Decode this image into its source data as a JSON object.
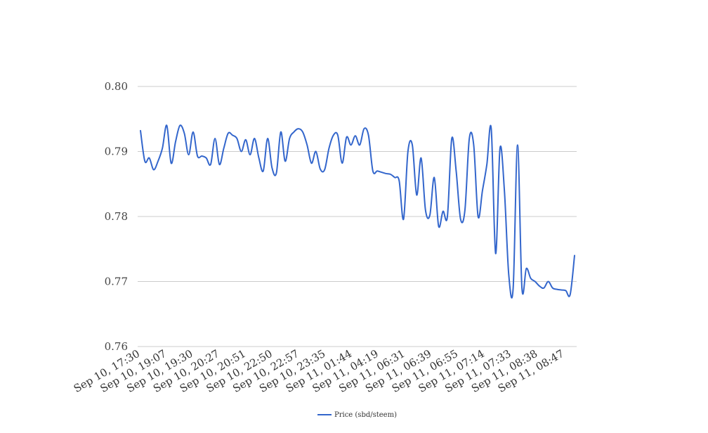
{
  "chart_data": {
    "type": "line",
    "title": "",
    "xlabel": "",
    "ylabel": "",
    "ylim": [
      0.76,
      0.8
    ],
    "y_ticks": [
      "0.80",
      "0.79",
      "0.78",
      "0.77",
      "0.76"
    ],
    "y_tick_values": [
      0.8,
      0.79,
      0.78,
      0.77,
      0.76
    ],
    "x_tick_labels": [
      "Sep 10, 17:30",
      "Sep 10, 19:07",
      "Sep 10, 19:30",
      "Sep 10, 20:27",
      "Sep 10, 20:51",
      "Sep 10, 22:50",
      "Sep 10, 22:57",
      "Sep 10, 23:35",
      "Sep 11, 01:44",
      "Sep 11, 04:19",
      "Sep 11, 06:31",
      "Sep 11, 06:39",
      "Sep 11, 06:55",
      "Sep 11, 07:14",
      "Sep 11, 07:33",
      "Sep 11, 08:38",
      "Sep 11, 08:47"
    ],
    "grid": true,
    "legend_position": "bottom",
    "series": [
      {
        "name": "Price (sbd/steem)",
        "color": "#3366cc",
        "values": [
          0.7932,
          0.7885,
          0.789,
          0.7872,
          0.7885,
          0.7905,
          0.794,
          0.7882,
          0.7915,
          0.794,
          0.7928,
          0.7895,
          0.793,
          0.7893,
          0.7893,
          0.789,
          0.788,
          0.792,
          0.788,
          0.7905,
          0.7928,
          0.7925,
          0.792,
          0.79,
          0.7918,
          0.7895,
          0.792,
          0.789,
          0.787,
          0.792,
          0.7875,
          0.7867,
          0.793,
          0.7885,
          0.792,
          0.793,
          0.7935,
          0.793,
          0.791,
          0.7882,
          0.79,
          0.7873,
          0.7872,
          0.7905,
          0.7925,
          0.7925,
          0.7882,
          0.7922,
          0.791,
          0.7924,
          0.791,
          0.7935,
          0.7925,
          0.787,
          0.787,
          0.7868,
          0.7866,
          0.7865,
          0.786,
          0.7855,
          0.7796,
          0.79,
          0.791,
          0.7833,
          0.789,
          0.781,
          0.7802,
          0.786,
          0.7785,
          0.7808,
          0.78,
          0.792,
          0.787,
          0.7796,
          0.781,
          0.792,
          0.791,
          0.78,
          0.784,
          0.788,
          0.7935,
          0.7743,
          0.7905,
          0.784,
          0.771,
          0.769,
          0.791,
          0.769,
          0.772,
          0.7705,
          0.77,
          0.7693,
          0.769,
          0.77,
          0.769,
          0.7688,
          0.7687,
          0.7686,
          0.768,
          0.774
        ]
      }
    ]
  }
}
